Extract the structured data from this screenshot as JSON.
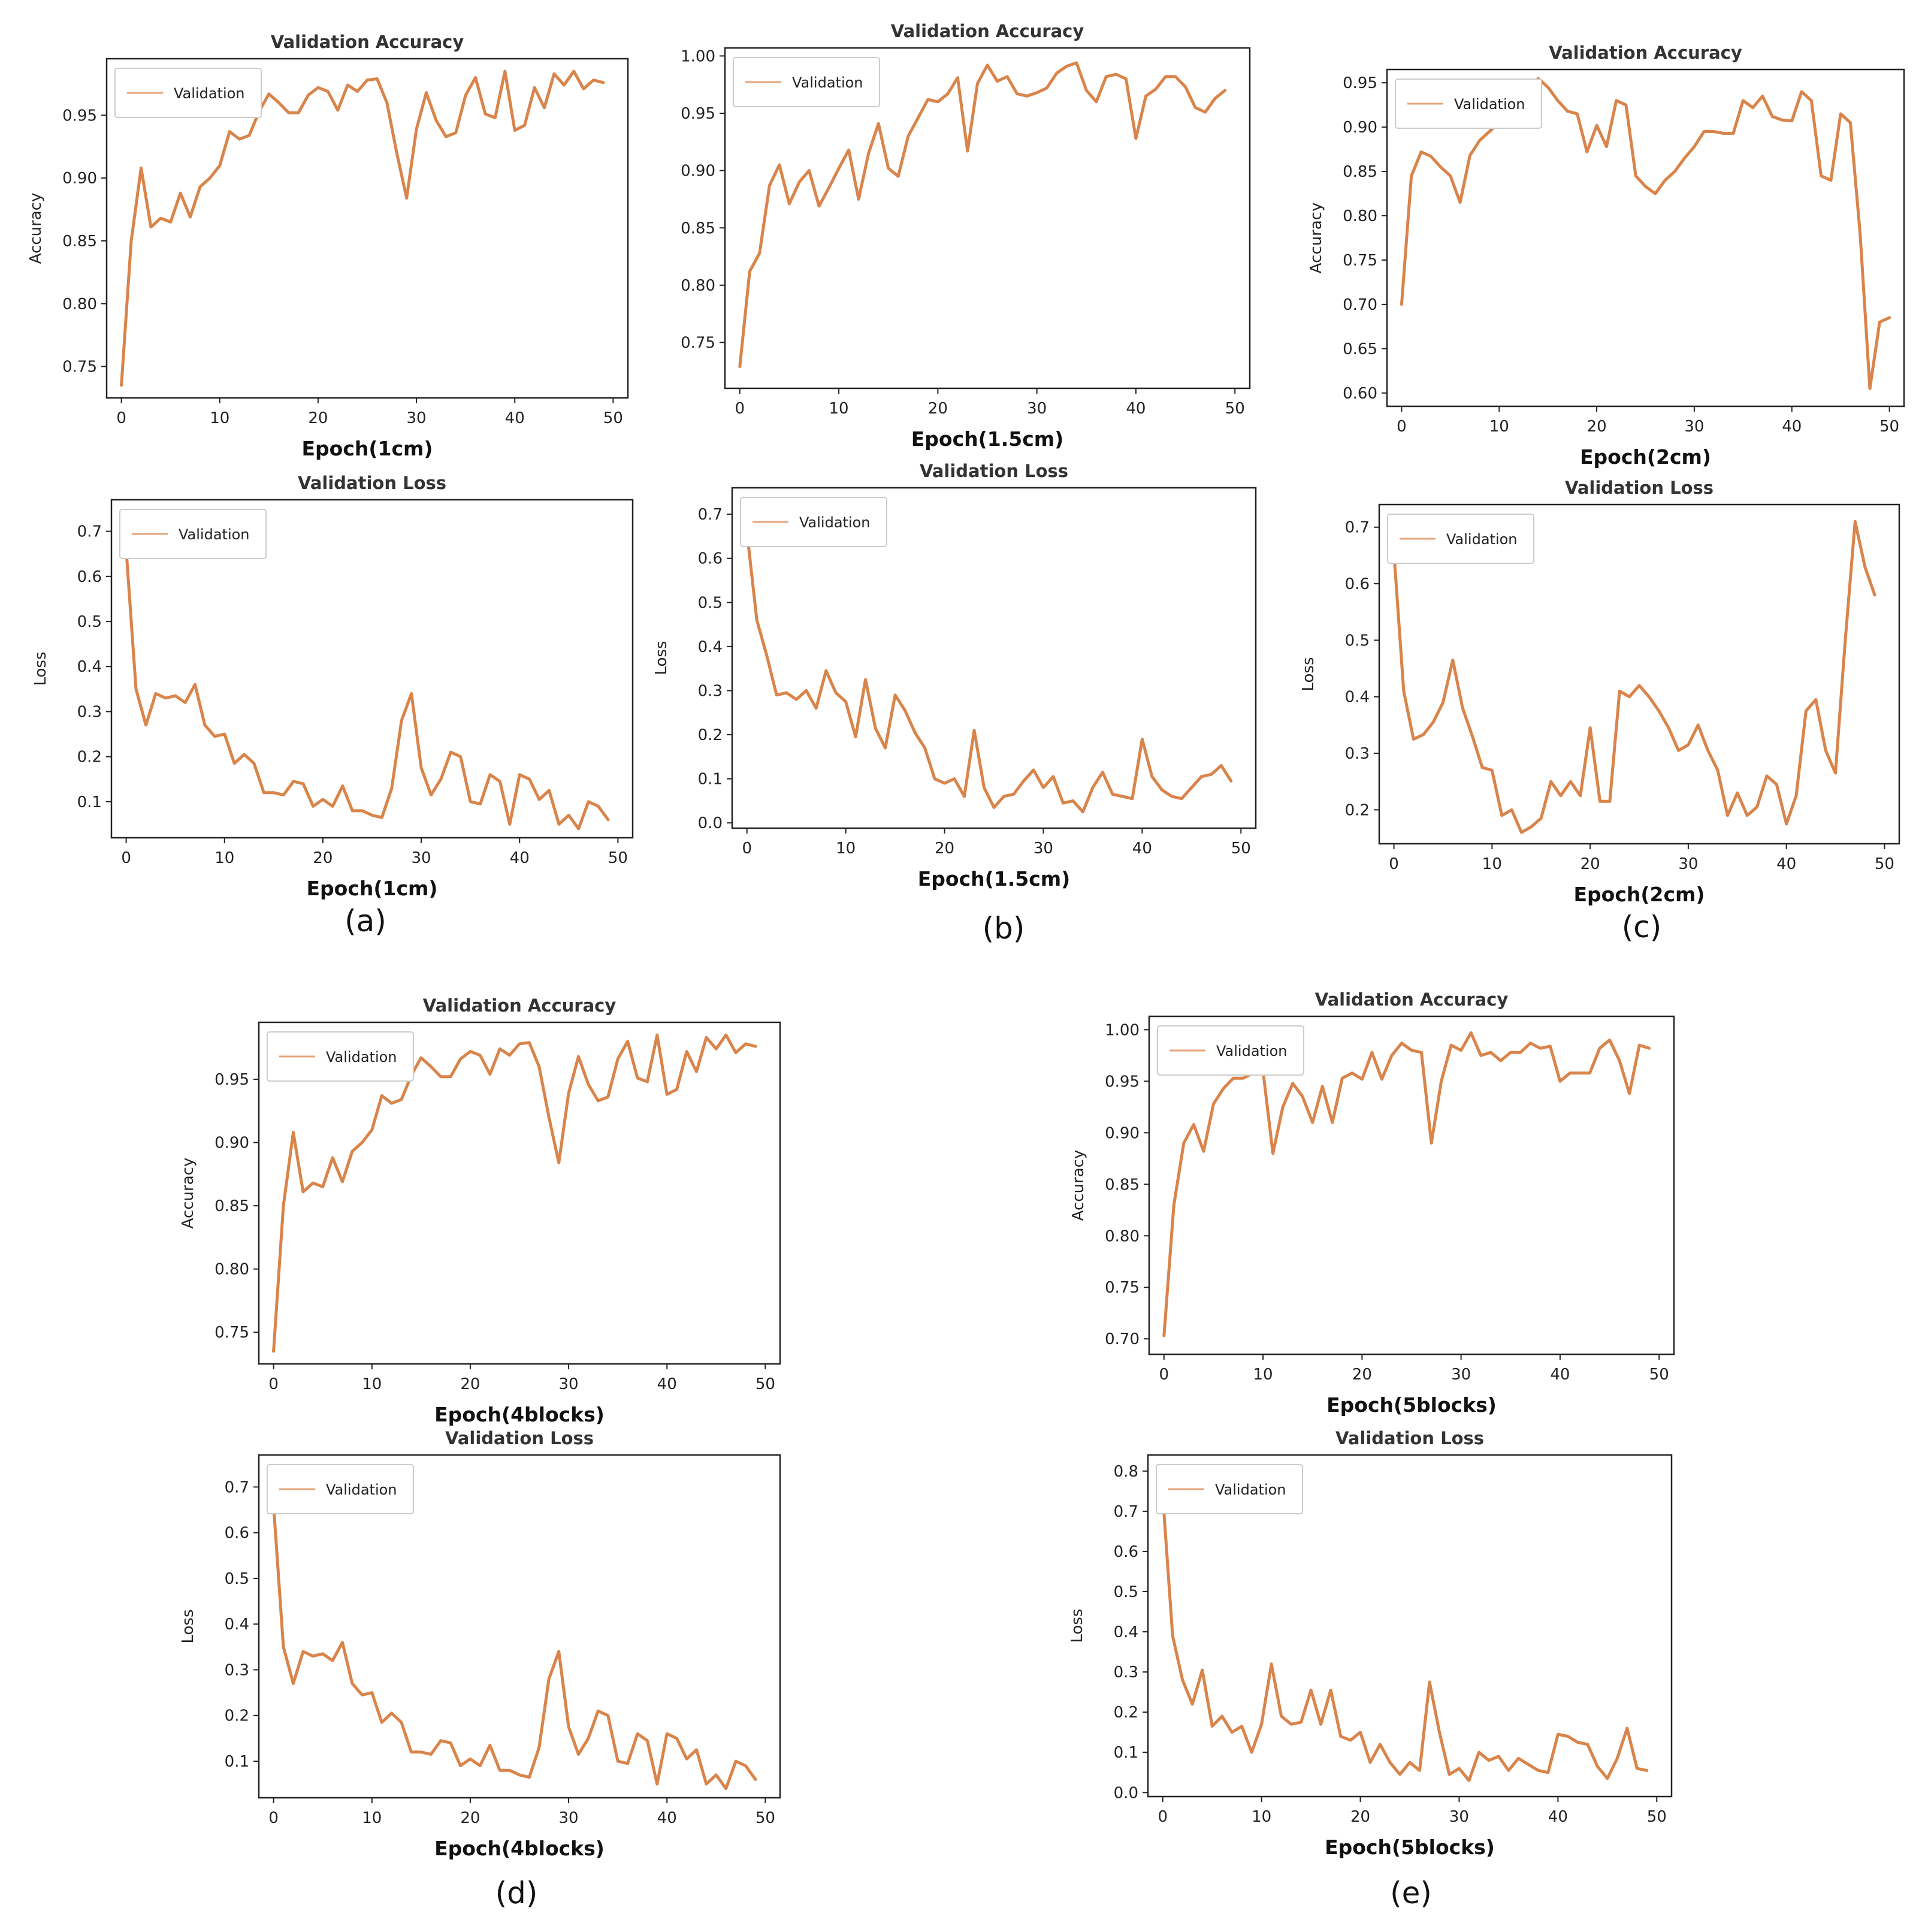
{
  "figure": {
    "panel_labels": [
      "(a)",
      "(b)",
      "(c)",
      "(d)",
      "(e)"
    ],
    "line_color": "#d9844a",
    "legend_line_color": "#e6a57a"
  },
  "chart_data": [
    {
      "id": "a-acc",
      "type": "line",
      "title": "Validation Accuracy",
      "xlabel": "Epoch(1cm)",
      "ylabel": "Accuracy",
      "legend": [
        "Validation"
      ],
      "legend_position": "top-left",
      "xlim": [
        -1.5,
        51.5
      ],
      "ylim": [
        0.725,
        0.995
      ],
      "xticks": [
        0,
        10,
        20,
        30,
        40,
        50
      ],
      "yticks": [
        0.75,
        0.8,
        0.85,
        0.9,
        0.95
      ],
      "ytick_labels": [
        "0.75",
        "0.80",
        "0.85",
        "0.90",
        "0.95"
      ],
      "series": [
        {
          "name": "Validation",
          "values": [
            0.735,
            0.85,
            0.908,
            0.861,
            0.868,
            0.865,
            0.888,
            0.869,
            0.893,
            0.9,
            0.91,
            0.937,
            0.931,
            0.934,
            0.953,
            0.967,
            0.96,
            0.952,
            0.952,
            0.966,
            0.972,
            0.969,
            0.954,
            0.974,
            0.969,
            0.978,
            0.979,
            0.96,
            0.92,
            0.884,
            0.939,
            0.968,
            0.946,
            0.933,
            0.936,
            0.966,
            0.98,
            0.951,
            0.948,
            0.985,
            0.938,
            0.942,
            0.972,
            0.956,
            0.983,
            0.974,
            0.985,
            0.971,
            0.978,
            0.976
          ]
        }
      ]
    },
    {
      "id": "a-loss",
      "type": "line",
      "title": "Validation Loss",
      "xlabel": "Epoch(1cm)",
      "ylabel": "Loss",
      "legend": [
        "Validation"
      ],
      "legend_position": "top-left",
      "xlim": [
        -1.5,
        51.5
      ],
      "ylim": [
        0.02,
        0.77
      ],
      "xticks": [
        0,
        10,
        20,
        30,
        40,
        50
      ],
      "yticks": [
        0.1,
        0.2,
        0.3,
        0.4,
        0.5,
        0.6,
        0.7
      ],
      "ytick_labels": [
        "0.1",
        "0.2",
        "0.3",
        "0.4",
        "0.5",
        "0.6",
        "0.7"
      ],
      "series": [
        {
          "name": "Validation",
          "values": [
            0.66,
            0.35,
            0.27,
            0.34,
            0.33,
            0.335,
            0.32,
            0.36,
            0.27,
            0.245,
            0.25,
            0.185,
            0.205,
            0.185,
            0.12,
            0.12,
            0.115,
            0.145,
            0.14,
            0.09,
            0.105,
            0.09,
            0.135,
            0.08,
            0.08,
            0.07,
            0.065,
            0.13,
            0.28,
            0.34,
            0.175,
            0.115,
            0.15,
            0.21,
            0.2,
            0.1,
            0.095,
            0.16,
            0.145,
            0.05,
            0.16,
            0.15,
            0.105,
            0.125,
            0.05,
            0.07,
            0.04,
            0.1,
            0.09,
            0.06
          ]
        }
      ]
    },
    {
      "id": "b-acc",
      "type": "line",
      "title": "Validation Accuracy",
      "xlabel": "Epoch(1.5cm)",
      "ylabel": "",
      "legend": [
        "Validation"
      ],
      "legend_position": "top-left",
      "xlim": [
        -1.5,
        51.5
      ],
      "ylim": [
        0.71,
        1.007
      ],
      "xticks": [
        0,
        10,
        20,
        30,
        40,
        50
      ],
      "yticks": [
        0.75,
        0.8,
        0.85,
        0.9,
        0.95,
        1.0
      ],
      "ytick_labels": [
        "0.75",
        "0.80",
        "0.85",
        "0.90",
        "0.95",
        "1.00"
      ],
      "series": [
        {
          "name": "Validation",
          "values": [
            0.729,
            0.812,
            0.828,
            0.887,
            0.905,
            0.871,
            0.89,
            0.9,
            0.869,
            0.885,
            0.902,
            0.918,
            0.875,
            0.915,
            0.941,
            0.902,
            0.895,
            0.93,
            0.946,
            0.962,
            0.96,
            0.967,
            0.981,
            0.917,
            0.976,
            0.992,
            0.978,
            0.982,
            0.967,
            0.965,
            0.968,
            0.972,
            0.985,
            0.991,
            0.994,
            0.97,
            0.96,
            0.982,
            0.984,
            0.98,
            0.928,
            0.965,
            0.971,
            0.982,
            0.982,
            0.973,
            0.955,
            0.951,
            0.963,
            0.97
          ]
        }
      ]
    },
    {
      "id": "b-loss",
      "type": "line",
      "title": "Validation Loss",
      "xlabel": "Epoch(1.5cm)",
      "ylabel": "Loss",
      "legend": [
        "Validation"
      ],
      "legend_position": "top-left",
      "xlim": [
        -1.5,
        51.5
      ],
      "ylim": [
        -0.012,
        0.76
      ],
      "xticks": [
        0,
        10,
        20,
        30,
        40,
        50
      ],
      "yticks": [
        0.0,
        0.1,
        0.2,
        0.3,
        0.4,
        0.5,
        0.6,
        0.7
      ],
      "ytick_labels": [
        "0.0",
        "0.1",
        "0.2",
        "0.3",
        "0.4",
        "0.5",
        "0.6",
        "0.7"
      ],
      "series": [
        {
          "name": "Validation",
          "values": [
            0.66,
            0.46,
            0.38,
            0.29,
            0.295,
            0.28,
            0.3,
            0.26,
            0.345,
            0.295,
            0.275,
            0.195,
            0.325,
            0.215,
            0.17,
            0.29,
            0.255,
            0.205,
            0.17,
            0.1,
            0.09,
            0.1,
            0.06,
            0.21,
            0.08,
            0.035,
            0.06,
            0.065,
            0.095,
            0.12,
            0.08,
            0.105,
            0.045,
            0.05,
            0.025,
            0.08,
            0.115,
            0.065,
            0.06,
            0.055,
            0.19,
            0.105,
            0.075,
            0.06,
            0.055,
            0.08,
            0.105,
            0.11,
            0.13,
            0.095
          ]
        }
      ]
    },
    {
      "id": "c-acc",
      "type": "line",
      "title": "Validation Accuracy",
      "xlabel": "Epoch(2cm)",
      "ylabel": "Accuracy",
      "legend": [
        "Validation"
      ],
      "legend_position": "top-left",
      "xlim": [
        -1.5,
        51.5
      ],
      "ylim": [
        0.585,
        0.965
      ],
      "xticks": [
        0,
        10,
        20,
        30,
        40,
        50
      ],
      "yticks": [
        0.6,
        0.65,
        0.7,
        0.75,
        0.8,
        0.85,
        0.9,
        0.95
      ],
      "ytick_labels": [
        "0.60",
        "0.65",
        "0.70",
        "0.75",
        "0.80",
        "0.85",
        "0.90",
        "0.95"
      ],
      "series": [
        {
          "name": "Validation",
          "values": [
            0.7,
            0.845,
            0.872,
            0.867,
            0.855,
            0.845,
            0.815,
            0.868,
            0.885,
            0.895,
            0.905,
            0.91,
            0.925,
            0.94,
            0.955,
            0.945,
            0.93,
            0.918,
            0.915,
            0.872,
            0.902,
            0.878,
            0.93,
            0.925,
            0.845,
            0.833,
            0.825,
            0.84,
            0.85,
            0.865,
            0.878,
            0.895,
            0.895,
            0.893,
            0.893,
            0.93,
            0.922,
            0.935,
            0.912,
            0.908,
            0.907,
            0.94,
            0.93,
            0.845,
            0.84,
            0.915,
            0.905,
            0.78,
            0.605,
            0.68,
            0.685
          ]
        }
      ]
    },
    {
      "id": "c-loss",
      "type": "line",
      "title": "Validation Loss",
      "xlabel": "Epoch(2cm)",
      "ylabel": "Loss",
      "legend": [
        "Validation"
      ],
      "legend_position": "top-left",
      "xlim": [
        -1.5,
        51.5
      ],
      "ylim": [
        0.14,
        0.74
      ],
      "xticks": [
        0,
        10,
        20,
        30,
        40,
        50
      ],
      "yticks": [
        0.2,
        0.3,
        0.4,
        0.5,
        0.6,
        0.7
      ],
      "ytick_labels": [
        "0.2",
        "0.3",
        "0.4",
        "0.5",
        "0.6",
        "0.7"
      ],
      "series": [
        {
          "name": "Validation",
          "values": [
            0.655,
            0.41,
            0.325,
            0.333,
            0.355,
            0.39,
            0.465,
            0.38,
            0.33,
            0.275,
            0.27,
            0.19,
            0.2,
            0.16,
            0.17,
            0.185,
            0.25,
            0.225,
            0.25,
            0.225,
            0.345,
            0.215,
            0.215,
            0.41,
            0.4,
            0.42,
            0.4,
            0.375,
            0.345,
            0.305,
            0.315,
            0.35,
            0.305,
            0.27,
            0.19,
            0.23,
            0.19,
            0.205,
            0.26,
            0.245,
            0.175,
            0.225,
            0.375,
            0.395,
            0.305,
            0.265,
            0.5,
            0.71,
            0.63,
            0.58
          ]
        }
      ]
    },
    {
      "id": "d-acc",
      "type": "line",
      "title": "Validation Accuracy",
      "xlabel": "Epoch(4blocks)",
      "ylabel": "Accuracy",
      "legend": [
        "Validation"
      ],
      "legend_position": "top-left",
      "xlim": [
        -1.5,
        51.5
      ],
      "ylim": [
        0.725,
        0.995
      ],
      "xticks": [
        0,
        10,
        20,
        30,
        40,
        50
      ],
      "yticks": [
        0.75,
        0.8,
        0.85,
        0.9,
        0.95
      ],
      "ytick_labels": [
        "0.75",
        "0.80",
        "0.85",
        "0.90",
        "0.95"
      ],
      "series": [
        {
          "name": "Validation",
          "values": [
            0.735,
            0.85,
            0.908,
            0.861,
            0.868,
            0.865,
            0.888,
            0.869,
            0.893,
            0.9,
            0.91,
            0.937,
            0.931,
            0.934,
            0.953,
            0.967,
            0.96,
            0.952,
            0.952,
            0.966,
            0.972,
            0.969,
            0.954,
            0.974,
            0.969,
            0.978,
            0.979,
            0.96,
            0.92,
            0.884,
            0.939,
            0.968,
            0.946,
            0.933,
            0.936,
            0.966,
            0.98,
            0.951,
            0.948,
            0.985,
            0.938,
            0.942,
            0.972,
            0.956,
            0.983,
            0.974,
            0.985,
            0.971,
            0.978,
            0.976
          ]
        }
      ]
    },
    {
      "id": "d-loss",
      "type": "line",
      "title": "Validation Loss",
      "xlabel": "Epoch(4blocks)",
      "ylabel": "Loss",
      "legend": [
        "Validation"
      ],
      "legend_position": "top-left",
      "xlim": [
        -1.5,
        51.5
      ],
      "ylim": [
        0.02,
        0.77
      ],
      "xticks": [
        0,
        10,
        20,
        30,
        40,
        50
      ],
      "yticks": [
        0.1,
        0.2,
        0.3,
        0.4,
        0.5,
        0.6,
        0.7
      ],
      "ytick_labels": [
        "0.1",
        "0.2",
        "0.3",
        "0.4",
        "0.5",
        "0.6",
        "0.7"
      ],
      "series": [
        {
          "name": "Validation",
          "values": [
            0.66,
            0.35,
            0.27,
            0.34,
            0.33,
            0.335,
            0.32,
            0.36,
            0.27,
            0.245,
            0.25,
            0.185,
            0.205,
            0.185,
            0.12,
            0.12,
            0.115,
            0.145,
            0.14,
            0.09,
            0.105,
            0.09,
            0.135,
            0.08,
            0.08,
            0.07,
            0.065,
            0.13,
            0.28,
            0.34,
            0.175,
            0.115,
            0.15,
            0.21,
            0.2,
            0.1,
            0.095,
            0.16,
            0.145,
            0.05,
            0.16,
            0.15,
            0.105,
            0.125,
            0.05,
            0.07,
            0.04,
            0.1,
            0.09,
            0.06
          ]
        }
      ]
    },
    {
      "id": "e-acc",
      "type": "line",
      "title": "Validation Accuracy",
      "xlabel": "Epoch(5blocks)",
      "ylabel": "Accuracy",
      "legend": [
        "Validation"
      ],
      "legend_position": "top-left",
      "xlim": [
        -1.5,
        51.5
      ],
      "ylim": [
        0.685,
        1.013
      ],
      "xticks": [
        0,
        10,
        20,
        30,
        40,
        50
      ],
      "yticks": [
        0.7,
        0.75,
        0.8,
        0.85,
        0.9,
        0.95,
        1.0
      ],
      "ytick_labels": [
        "0.70",
        "0.75",
        "0.80",
        "0.85",
        "0.90",
        "0.95",
        "1.00"
      ],
      "series": [
        {
          "name": "Validation",
          "values": [
            0.703,
            0.83,
            0.89,
            0.908,
            0.882,
            0.928,
            0.943,
            0.953,
            0.953,
            0.958,
            0.96,
            0.88,
            0.925,
            0.948,
            0.935,
            0.91,
            0.945,
            0.91,
            0.953,
            0.958,
            0.952,
            0.978,
            0.952,
            0.975,
            0.987,
            0.98,
            0.978,
            0.89,
            0.95,
            0.985,
            0.98,
            0.997,
            0.975,
            0.978,
            0.97,
            0.978,
            0.978,
            0.987,
            0.982,
            0.984,
            0.95,
            0.958,
            0.958,
            0.958,
            0.982,
            0.99,
            0.97,
            0.938,
            0.985,
            0.982
          ]
        }
      ]
    },
    {
      "id": "e-loss",
      "type": "line",
      "title": "Validation Loss",
      "xlabel": "Epoch(5blocks)",
      "ylabel": "Loss",
      "legend": [
        "Validation"
      ],
      "legend_position": "top-left",
      "xlim": [
        -1.5,
        51.5
      ],
      "ylim": [
        -0.01,
        0.84
      ],
      "xticks": [
        0,
        10,
        20,
        30,
        40,
        50
      ],
      "yticks": [
        0.0,
        0.1,
        0.2,
        0.3,
        0.4,
        0.5,
        0.6,
        0.7,
        0.8
      ],
      "ytick_labels": [
        "0.0",
        "0.1",
        "0.2",
        "0.3",
        "0.4",
        "0.5",
        "0.6",
        "0.7",
        "0.8"
      ],
      "series": [
        {
          "name": "Validation",
          "values": [
            0.74,
            0.39,
            0.28,
            0.22,
            0.305,
            0.165,
            0.19,
            0.15,
            0.165,
            0.1,
            0.17,
            0.32,
            0.19,
            0.17,
            0.175,
            0.255,
            0.17,
            0.255,
            0.14,
            0.13,
            0.15,
            0.075,
            0.12,
            0.075,
            0.045,
            0.075,
            0.055,
            0.275,
            0.15,
            0.045,
            0.06,
            0.03,
            0.1,
            0.08,
            0.09,
            0.055,
            0.085,
            0.07,
            0.055,
            0.05,
            0.145,
            0.14,
            0.125,
            0.12,
            0.065,
            0.035,
            0.085,
            0.16,
            0.06,
            0.055
          ]
        }
      ]
    }
  ]
}
